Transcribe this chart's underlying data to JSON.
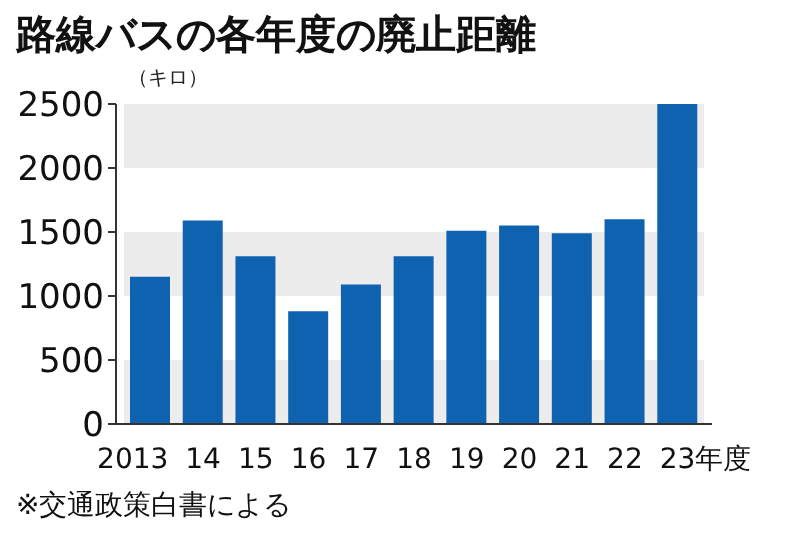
{
  "chart_data": {
    "type": "bar",
    "title": "路線バスの各年度の廃止距離",
    "ylabel": "（キロ）",
    "categories": [
      "2013",
      "14",
      "15",
      "16",
      "17",
      "18",
      "19",
      "20",
      "21",
      "22",
      "23年度"
    ],
    "series": [
      {
        "color": "#0f62b0",
        "values": [
          1150,
          1590,
          1310,
          880,
          1090,
          1310,
          1510,
          1550,
          1490,
          1600,
          2500
        ]
      }
    ],
    "ylim": [
      0,
      2500
    ],
    "yticks": [
      0,
      500,
      1000,
      1500,
      2000,
      2500
    ],
    "grid": false,
    "bands": [
      {
        "axis": "y",
        "from": 0,
        "to": 500,
        "color": "#ececec"
      },
      {
        "axis": "y",
        "from": 1000,
        "to": 1500,
        "color": "#ececec"
      },
      {
        "axis": "y",
        "from": 2000,
        "to": 2500,
        "color": "#ececec"
      }
    ],
    "annotations": [
      "※交通政策白書による"
    ]
  }
}
